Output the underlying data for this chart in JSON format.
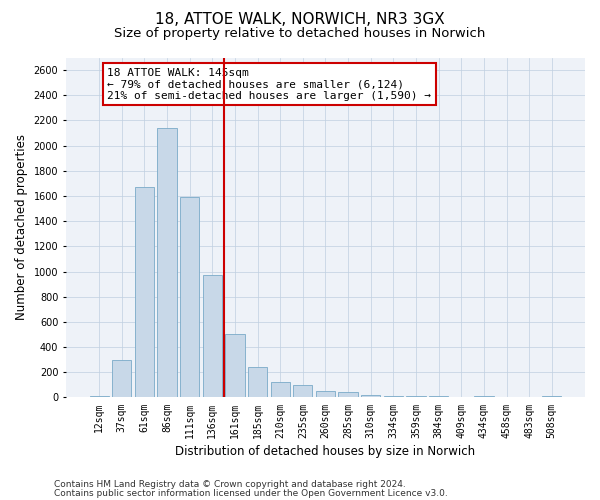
{
  "title_line1": "18, ATTOE WALK, NORWICH, NR3 3GX",
  "title_line2": "Size of property relative to detached houses in Norwich",
  "xlabel": "Distribution of detached houses by size in Norwich",
  "ylabel": "Number of detached properties",
  "categories": [
    "12sqm",
    "37sqm",
    "61sqm",
    "86sqm",
    "111sqm",
    "136sqm",
    "161sqm",
    "185sqm",
    "210sqm",
    "235sqm",
    "260sqm",
    "285sqm",
    "310sqm",
    "334sqm",
    "359sqm",
    "384sqm",
    "409sqm",
    "434sqm",
    "458sqm",
    "483sqm",
    "508sqm"
  ],
  "values": [
    15,
    295,
    1670,
    2140,
    1590,
    970,
    500,
    245,
    120,
    100,
    55,
    40,
    20,
    15,
    10,
    15,
    5,
    8,
    3,
    2,
    12
  ],
  "bar_color": "#c8d8e8",
  "bar_edge_color": "#7aaac8",
  "vline_color": "#cc0000",
  "vline_x": 5.5,
  "annotation_line1": "18 ATTOE WALK: 145sqm",
  "annotation_line2": "← 79% of detached houses are smaller (6,124)",
  "annotation_line3": "21% of semi-detached houses are larger (1,590) →",
  "annotation_box_facecolor": "#ffffff",
  "annotation_box_edgecolor": "#cc0000",
  "ylim": [
    0,
    2700
  ],
  "yticks": [
    0,
    200,
    400,
    600,
    800,
    1000,
    1200,
    1400,
    1600,
    1800,
    2000,
    2200,
    2400,
    2600
  ],
  "grid_color": "#c0cfe0",
  "bg_color": "#eef2f8",
  "footer_line1": "Contains HM Land Registry data © Crown copyright and database right 2024.",
  "footer_line2": "Contains public sector information licensed under the Open Government Licence v3.0.",
  "title_fontsize": 11,
  "subtitle_fontsize": 9.5,
  "xlabel_fontsize": 8.5,
  "ylabel_fontsize": 8.5,
  "tick_fontsize": 7,
  "annotation_fontsize": 8,
  "footer_fontsize": 6.5
}
